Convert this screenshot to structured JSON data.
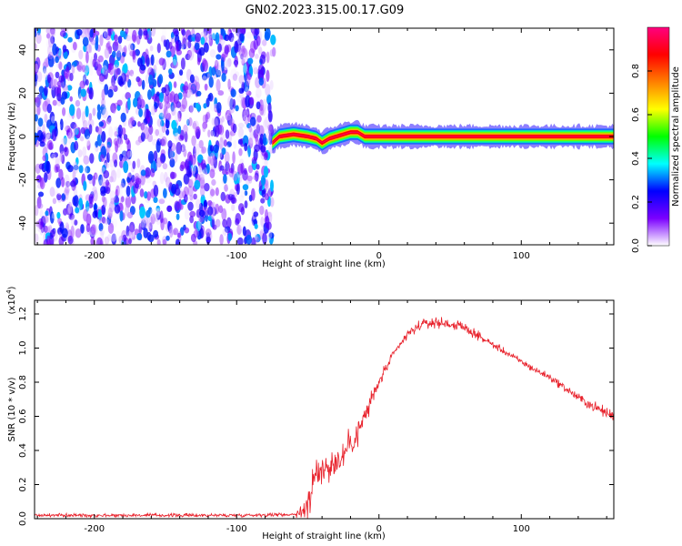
{
  "title": "GN02.2023.315.00.17.G09",
  "chart_data": [
    {
      "type": "heatmap",
      "panel": "spectrogram",
      "xlabel": "Height of straight line (km)",
      "ylabel": "Frequency (Hz)",
      "xlim": [
        -242,
        165
      ],
      "ylim": [
        -50,
        50
      ],
      "xticks": [
        -200,
        -100,
        0,
        100
      ],
      "yticks": [
        -40,
        -20,
        0,
        20,
        40
      ],
      "colorbar": {
        "label": "Normalized spectral amplitude",
        "range": [
          0,
          1
        ],
        "ticks": [
          0.0,
          0.2,
          0.4,
          0.6,
          0.8
        ],
        "colormap": [
          "#ffffff",
          "#7b00ff",
          "#0000ff",
          "#00ffff",
          "#00ff00",
          "#ffff00",
          "#ff7f00",
          "#ff0000",
          "#ff0080"
        ]
      },
      "regions": [
        {
          "description_x": [
            -242,
            -75
          ],
          "frequency": [
            -50,
            50
          ],
          "amplitude_range": [
            0.0,
            0.35
          ],
          "pattern": "noise"
        },
        {
          "description_x": [
            -75,
            165
          ],
          "frequency_center": 0,
          "frequency_halfwidth": 2.5,
          "amplitude_peak": 0.95,
          "pattern": "narrow tone"
        }
      ],
      "tone_track": {
        "x": [
          -75,
          -70,
          -60,
          -50,
          -44,
          -40,
          -35,
          -30,
          -25,
          -20,
          -15,
          -10,
          0,
          10,
          20,
          30,
          40,
          50,
          60,
          80,
          100,
          120,
          140,
          165
        ],
        "f": [
          -3,
          0,
          1,
          0,
          -1,
          -3,
          -1,
          0,
          1,
          2,
          2,
          0,
          0,
          0,
          0,
          0,
          0,
          0,
          0,
          0,
          0,
          0,
          0,
          0
        ]
      }
    },
    {
      "type": "line",
      "panel": "snr",
      "xlabel": "Height of straight line (km)",
      "ylabel": "SNR (10 * v/v)",
      "yscale_label": "(x10",
      "yscale_exponent": "4",
      "xlim": [
        -242,
        165
      ],
      "ylim": [
        0,
        1.28
      ],
      "xticks": [
        -200,
        -100,
        0,
        100
      ],
      "yticks": [
        0.0,
        0.2,
        0.4,
        0.6,
        0.8,
        1.0,
        1.2
      ],
      "color": "#e8202a",
      "series": [
        {
          "x": [
            -242,
            -200,
            -150,
            -100,
            -60,
            -52,
            -48,
            -44,
            -40,
            -35,
            -30,
            -25,
            -20,
            -15,
            -10,
            -5,
            0,
            10,
            20,
            30,
            40,
            50,
            60,
            70,
            80,
            90,
            100,
            110,
            120,
            130,
            140,
            150,
            160,
            165
          ],
          "y": [
            0.02,
            0.02,
            0.02,
            0.02,
            0.025,
            0.05,
            0.15,
            0.25,
            0.3,
            0.3,
            0.33,
            0.38,
            0.45,
            0.5,
            0.6,
            0.7,
            0.8,
            0.96,
            1.08,
            1.14,
            1.15,
            1.14,
            1.12,
            1.07,
            1.02,
            0.97,
            0.92,
            0.87,
            0.83,
            0.77,
            0.71,
            0.66,
            0.62,
            0.6
          ],
          "noise_amp": [
            0.015,
            0.015,
            0.015,
            0.015,
            0.015,
            0.08,
            0.15,
            0.15,
            0.12,
            0.12,
            0.13,
            0.13,
            0.15,
            0.12,
            0.1,
            0.08,
            0.05,
            0.04,
            0.04,
            0.04,
            0.045,
            0.045,
            0.04,
            0.035,
            0.03,
            0.03,
            0.03,
            0.03,
            0.03,
            0.035,
            0.04,
            0.045,
            0.05,
            0.05
          ]
        }
      ]
    }
  ]
}
